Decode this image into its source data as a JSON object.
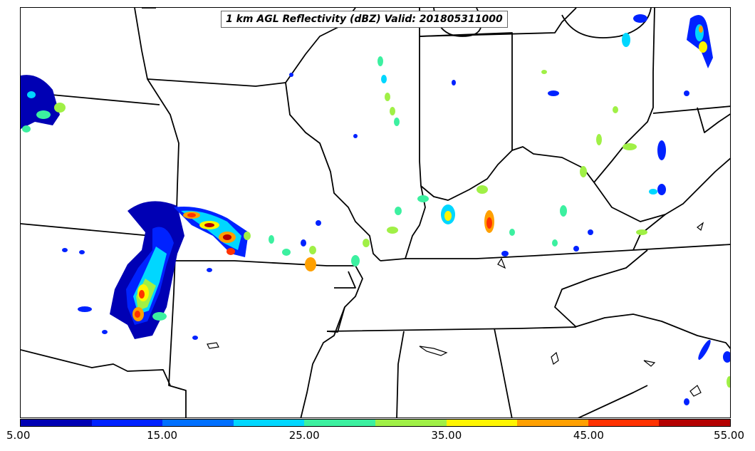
{
  "title": "1 km AGL Reflectivity (dBZ) Valid: 201805311000",
  "colorbar": {
    "ticks": [
      "5.00",
      "15.00",
      "25.00",
      "35.00",
      "45.00",
      "55.00"
    ],
    "min": 5,
    "max": 55,
    "colors": [
      "#0000b4",
      "#0022ff",
      "#0070ff",
      "#00d7ff",
      "#3cf0a0",
      "#a0f046",
      "#fff500",
      "#ffa000",
      "#ff3200",
      "#b40000"
    ]
  }
}
